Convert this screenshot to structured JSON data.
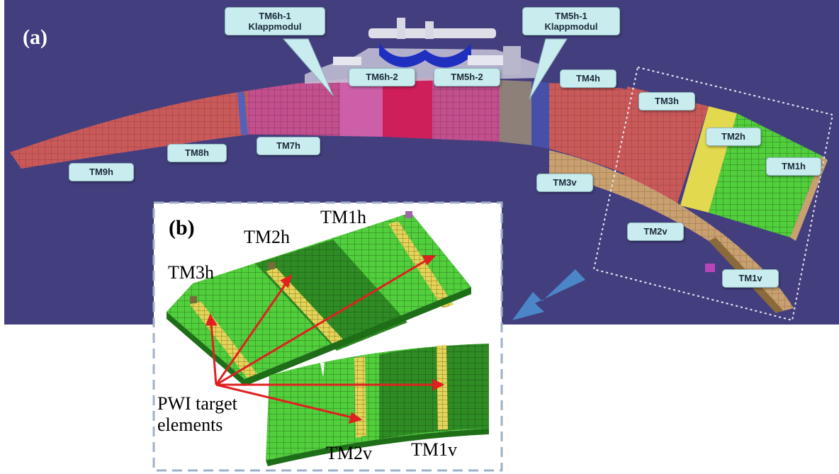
{
  "panel_a": {
    "tag": "(a)",
    "labels": {
      "tm6h1": [
        "TM6h-1",
        "Klappmodul"
      ],
      "tm5h1": [
        "TM5h-1",
        "Klappmodul"
      ],
      "tm6h2": "TM6h-2",
      "tm5h2": "TM5h-2",
      "tm4h": "TM4h",
      "tm3h": "TM3h",
      "tm2h": "TM2h",
      "tm1h": "TM1h",
      "tm9h": "TM9h",
      "tm8h": "TM8h",
      "tm7h": "TM7h",
      "tm3v": "TM3v",
      "tm2v": "TM2v",
      "tm1v": "TM1v"
    }
  },
  "panel_b": {
    "tag": "(b)",
    "labels": {
      "tm1h": "TM1h",
      "tm2h": "TM2h",
      "tm3h": "TM3h",
      "tm2v": "TM2v",
      "tm1v": "TM1v",
      "pwi_line1": "PWI target",
      "pwi_line2": "elements"
    }
  },
  "colors": {
    "background": "#433f7f",
    "callout": "#c9ecef",
    "tile_red": "#c95a5a",
    "tile_green": "#4fd33a",
    "tile_dark_green": "#2f8c24",
    "tile_gold": "#d8b24a",
    "arrow_red": "#e02020",
    "arrow_blue": "#4a86c8"
  }
}
